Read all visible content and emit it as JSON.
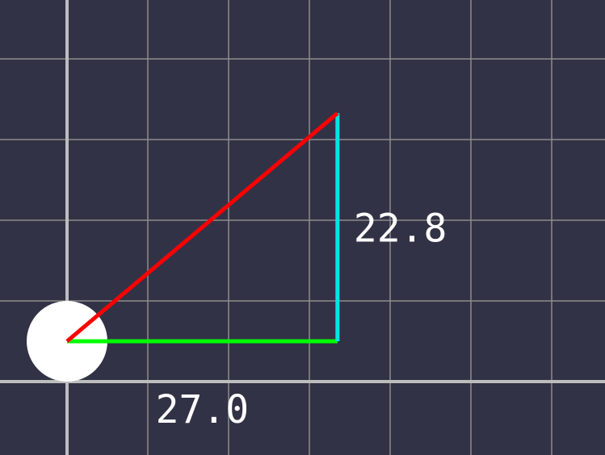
{
  "diagram": {
    "type": "vector-decomposition",
    "background_color": "#323246",
    "grid_color": "#8c8c8c",
    "axis_color": "#bdbdbd",
    "vector": {
      "dx": 27.0,
      "dy": 22.8,
      "color": "#ff0000"
    },
    "horizontal_component": {
      "label": "27.0",
      "color": "#00ff00"
    },
    "vertical_component": {
      "label": "22.8",
      "color": "#00e5e5"
    },
    "origin_marker": {
      "color": "#ffffff"
    }
  }
}
